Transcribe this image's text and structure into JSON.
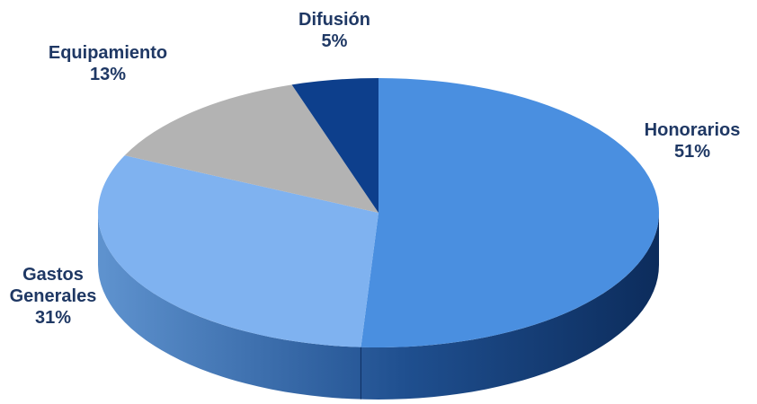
{
  "chart_data": {
    "type": "pie",
    "title": "",
    "slices": [
      {
        "label": "Honorarios",
        "value": 51,
        "value_label": "51%",
        "color": "#4a8fe0"
      },
      {
        "label": "Gastos Generales",
        "value": 31,
        "value_label": "31%",
        "color": "#7fb2f0"
      },
      {
        "label": "Equipamiento",
        "value": 13,
        "value_label": "13%",
        "color": "#b3b3b3"
      },
      {
        "label": "Difusión",
        "value": 5,
        "value_label": "5%",
        "color": "#0d3f8c"
      }
    ],
    "start_angle": "12 o'clock",
    "direction": "clockwise",
    "style": "3d",
    "label_color": "#1f3864",
    "side_color": "#27548f"
  }
}
